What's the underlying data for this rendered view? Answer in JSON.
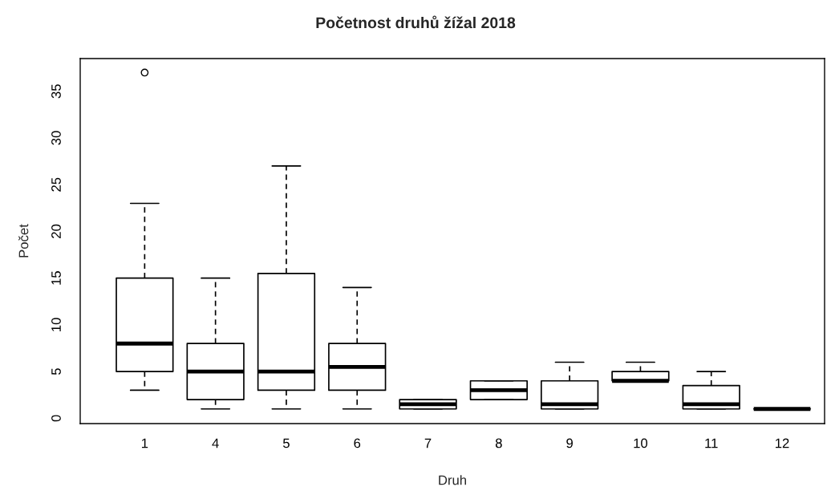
{
  "chart_data": {
    "type": "box",
    "title": "Početnost druhů žížal 2018",
    "xlabel": "Druh",
    "ylabel": "Počet",
    "categories": [
      "1",
      "4",
      "5",
      "6",
      "7",
      "8",
      "9",
      "10",
      "11",
      "12"
    ],
    "boxes": [
      {
        "low": 3,
        "q1": 5,
        "median": 8,
        "q3": 15,
        "high": 23,
        "outliers": [
          37
        ]
      },
      {
        "low": 1,
        "q1": 2,
        "median": 5,
        "q3": 8,
        "high": 15
      },
      {
        "low": 1,
        "q1": 3,
        "median": 5,
        "q3": 15.5,
        "high": 27
      },
      {
        "low": 1,
        "q1": 3,
        "median": 5.5,
        "q3": 8,
        "high": 14
      },
      {
        "low": 1,
        "q1": 1,
        "median": 1.5,
        "q3": 2,
        "high": 2
      },
      {
        "low": 2,
        "q1": 2,
        "median": 3,
        "q3": 4,
        "high": 4
      },
      {
        "low": 1,
        "q1": 1,
        "median": 1.5,
        "q3": 4,
        "high": 6
      },
      {
        "low": 4,
        "q1": 4,
        "median": 4,
        "q3": 5,
        "high": 6
      },
      {
        "low": 1,
        "q1": 1,
        "median": 1.5,
        "q3": 3.5,
        "high": 5
      },
      {
        "low": 1,
        "q1": 1,
        "median": 1,
        "q3": 1,
        "high": 1
      }
    ],
    "ylim": [
      -0.57,
      38.5
    ],
    "yticks": [
      0,
      5,
      10,
      15,
      20,
      25,
      30,
      35
    ]
  }
}
